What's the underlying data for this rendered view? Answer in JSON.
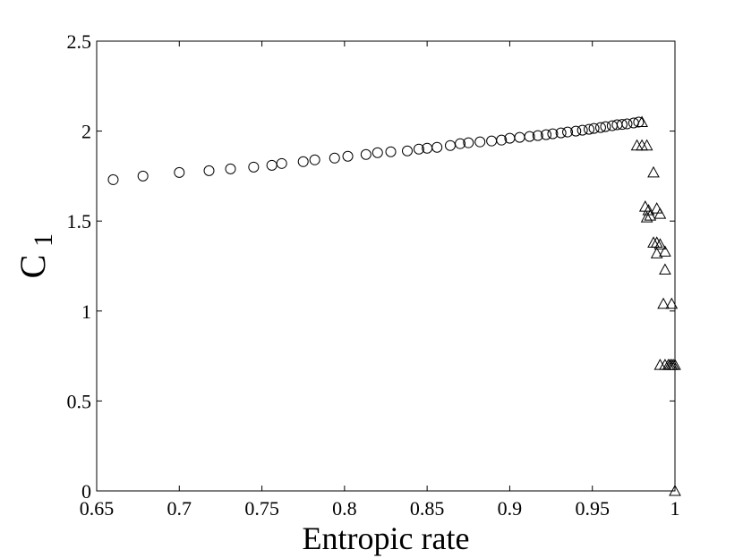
{
  "chart_data": {
    "type": "scatter",
    "xlabel": "Entropic rate",
    "ylabel": {
      "main": "C",
      "subscript": "1"
    },
    "xlim": [
      0.65,
      1.0
    ],
    "ylim": [
      0,
      2.5
    ],
    "x_ticks": [
      0.65,
      0.7,
      0.75,
      0.8,
      0.85,
      0.9,
      0.95,
      1
    ],
    "x_tick_labels": [
      "0.65",
      "0.7",
      "0.75",
      "0.8",
      "0.85",
      "0.9",
      "0.95",
      "1"
    ],
    "y_ticks": [
      0,
      0.5,
      1,
      1.5,
      2,
      2.5
    ],
    "y_tick_labels": [
      "0",
      "0.5",
      "1",
      "1.5",
      "2",
      "2.5"
    ],
    "grid": false,
    "series": [
      {
        "marker": "circle",
        "color": "#000000",
        "points": [
          [
            0.66,
            1.73
          ],
          [
            0.678,
            1.75
          ],
          [
            0.7,
            1.77
          ],
          [
            0.718,
            1.78
          ],
          [
            0.731,
            1.79
          ],
          [
            0.745,
            1.8
          ],
          [
            0.756,
            1.81
          ],
          [
            0.762,
            1.82
          ],
          [
            0.775,
            1.83
          ],
          [
            0.782,
            1.84
          ],
          [
            0.794,
            1.85
          ],
          [
            0.802,
            1.86
          ],
          [
            0.813,
            1.87
          ],
          [
            0.82,
            1.88
          ],
          [
            0.828,
            1.885
          ],
          [
            0.838,
            1.89
          ],
          [
            0.845,
            1.9
          ],
          [
            0.85,
            1.905
          ],
          [
            0.856,
            1.91
          ],
          [
            0.864,
            1.92
          ],
          [
            0.87,
            1.93
          ],
          [
            0.875,
            1.935
          ],
          [
            0.882,
            1.94
          ],
          [
            0.889,
            1.945
          ],
          [
            0.895,
            1.95
          ],
          [
            0.9,
            1.96
          ],
          [
            0.906,
            1.965
          ],
          [
            0.912,
            1.97
          ],
          [
            0.917,
            1.975
          ],
          [
            0.922,
            1.98
          ],
          [
            0.926,
            1.985
          ],
          [
            0.931,
            1.99
          ],
          [
            0.935,
            1.995
          ],
          [
            0.94,
            2.0
          ],
          [
            0.944,
            2.005
          ],
          [
            0.948,
            2.01
          ],
          [
            0.951,
            2.015
          ],
          [
            0.955,
            2.02
          ],
          [
            0.958,
            2.025
          ],
          [
            0.962,
            2.03
          ],
          [
            0.965,
            2.035
          ],
          [
            0.968,
            2.037
          ],
          [
            0.971,
            2.04
          ],
          [
            0.975,
            2.045
          ],
          [
            0.978,
            2.05
          ]
        ]
      },
      {
        "marker": "triangle",
        "color": "#000000",
        "points": [
          [
            0.98,
            2.05
          ],
          [
            0.977,
            1.92
          ],
          [
            0.98,
            1.92
          ],
          [
            0.983,
            1.92
          ],
          [
            0.987,
            1.77
          ],
          [
            0.982,
            1.58
          ],
          [
            0.984,
            1.56
          ],
          [
            0.989,
            1.57
          ],
          [
            0.985,
            1.53
          ],
          [
            0.991,
            1.54
          ],
          [
            0.983,
            1.52
          ],
          [
            0.987,
            1.38
          ],
          [
            0.989,
            1.38
          ],
          [
            0.991,
            1.37
          ],
          [
            0.994,
            1.33
          ],
          [
            0.989,
            1.32
          ],
          [
            0.994,
            1.23
          ],
          [
            0.993,
            1.04
          ],
          [
            0.998,
            1.04
          ],
          [
            0.991,
            0.7
          ],
          [
            0.994,
            0.7
          ],
          [
            0.996,
            0.7
          ],
          [
            0.997,
            0.7
          ],
          [
            0.998,
            0.7
          ],
          [
            0.999,
            0.7
          ],
          [
            1.0,
            0.7
          ],
          [
            1.0,
            0.0
          ]
        ]
      }
    ]
  }
}
